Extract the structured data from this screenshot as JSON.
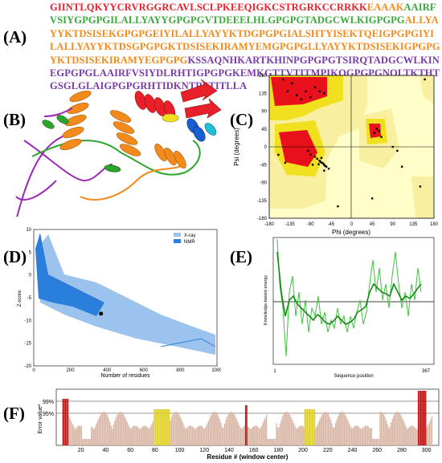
{
  "labels": {
    "a": "(A)",
    "b": "(B)",
    "c": "(C)",
    "d": "(D)",
    "e": "(E)",
    "f": "(F)"
  },
  "colors": {
    "red": "#e8202a",
    "orange": "#f28a1c",
    "cyan": "#14a8e0",
    "green": "#3aa83a",
    "purple": "#7a3aa8"
  },
  "sequence": [
    {
      "text": "GIINTLQKYYCRVRGGRCAVLSCLPKEEQIGKCSTRGRKCCRRKK",
      "color": "red"
    },
    {
      "text": "EAAAK",
      "color": "orange"
    },
    {
      "text": "AAIRFVSIYGPGPGILALLYAYYGPGPGVTDEEELHLGPGPGTADGCWLKIGPGPG",
      "color": "green"
    },
    {
      "text": "ALLYAYYKTDSISEKGPGPGEIYILALLYAYYKTDGPGPGIALSHTYISEKTQEIGPGPGIYILALLYAYYKTDSGPGPGKT",
      "color": "orange"
    },
    {
      "text": "DSISEKIRAMYEMGPGPGLLYAYYKTDSISEKIGPGPGYKTDSISEKIRAMYEGPGPG",
      "color": "orange"
    },
    {
      "text": "KSSAQNHKARTKHINPGPGPGTSIRQTADGCWLKINEGPGPGLAAIRFVSIYDLRHTIGPGPGKEMKGTTVTITMPIKQ",
      "color": "purple"
    },
    {
      "text": "GPGPGNQLTKTHTGSGLGLAIGPGPGRHTIDKNTRSTITLLA",
      "color": "purple"
    }
  ],
  "chart_data": [
    {
      "panel": "C",
      "type": "scatter",
      "title": "",
      "xlabel": "Phi (degrees)",
      "ylabel": "Psi (degrees)",
      "xlim": [
        -180,
        180
      ],
      "ylim": [
        -180,
        180
      ],
      "x_ticks": [
        "-180",
        "-135",
        "-90",
        "-45",
        "0",
        "45",
        "90",
        "135",
        "180"
      ],
      "y_ticks": [
        "180",
        "135",
        "90",
        "45",
        "0",
        "-45",
        "-90",
        "-135",
        "-180"
      ],
      "points": [
        [
          -65,
          -40
        ],
        [
          -60,
          -45
        ],
        [
          -70,
          -35
        ],
        [
          -55,
          -50
        ],
        [
          -75,
          -30
        ],
        [
          -62,
          -42
        ],
        [
          -68,
          -38
        ],
        [
          -58,
          -48
        ],
        [
          -72,
          -44
        ],
        [
          -80,
          -25
        ],
        [
          -50,
          -55
        ],
        [
          -66,
          -28
        ],
        [
          -90,
          -20
        ],
        [
          -85,
          -45
        ],
        [
          -95,
          -10
        ],
        [
          -60,
          -60
        ],
        [
          -100,
          140
        ],
        [
          -120,
          130
        ],
        [
          -80,
          150
        ],
        [
          -130,
          160
        ],
        [
          -140,
          140
        ],
        [
          -110,
          120
        ],
        [
          -90,
          125
        ],
        [
          -70,
          140
        ],
        [
          -150,
          170
        ],
        [
          -60,
          135
        ],
        [
          55,
          45
        ],
        [
          60,
          40
        ],
        [
          50,
          35
        ],
        [
          65,
          25
        ],
        [
          45,
          -130
        ],
        [
          -160,
          -20
        ],
        [
          -145,
          -40
        ],
        [
          100,
          -10
        ],
        [
          90,
          0
        ],
        [
          110,
          -50
        ],
        [
          -30,
          -150
        ],
        [
          150,
          -100
        ],
        [
          160,
          170
        ]
      ]
    },
    {
      "panel": "D",
      "type": "scatter",
      "title": "",
      "xlabel": "Number of residues",
      "ylabel": "Z-score",
      "xlim": [
        0,
        1000
      ],
      "ylim": [
        -20,
        10
      ],
      "x_ticks": [
        "0",
        "200",
        "400",
        "600",
        "800",
        "1000"
      ],
      "y_ticks": [
        "10",
        "5",
        "0",
        "-5",
        "-10",
        "-15",
        "-20"
      ],
      "legend": [
        "X-ray",
        "NMR"
      ],
      "legend_colors": [
        "#9cc3ee",
        "#2a7fdc"
      ],
      "marker": [
        367,
        -8.5
      ]
    },
    {
      "panel": "E",
      "type": "line",
      "title": "",
      "xlabel": "Sequence position",
      "ylabel": "Knowledge-based energy",
      "x_ticks": [
        "1",
        "367"
      ],
      "xlim": [
        1,
        367
      ]
    },
    {
      "panel": "F",
      "type": "bar",
      "title": "",
      "xlabel": "Residue # (window center)",
      "ylabel": "Error value*",
      "xlim": [
        0,
        310
      ],
      "y_ticks": [
        "99%",
        "95%"
      ],
      "x_ticks": [
        "20",
        "40",
        "60",
        "80",
        "100",
        "120",
        "140",
        "160",
        "180",
        "200",
        "220",
        "240",
        "260",
        "280",
        "300"
      ]
    }
  ]
}
